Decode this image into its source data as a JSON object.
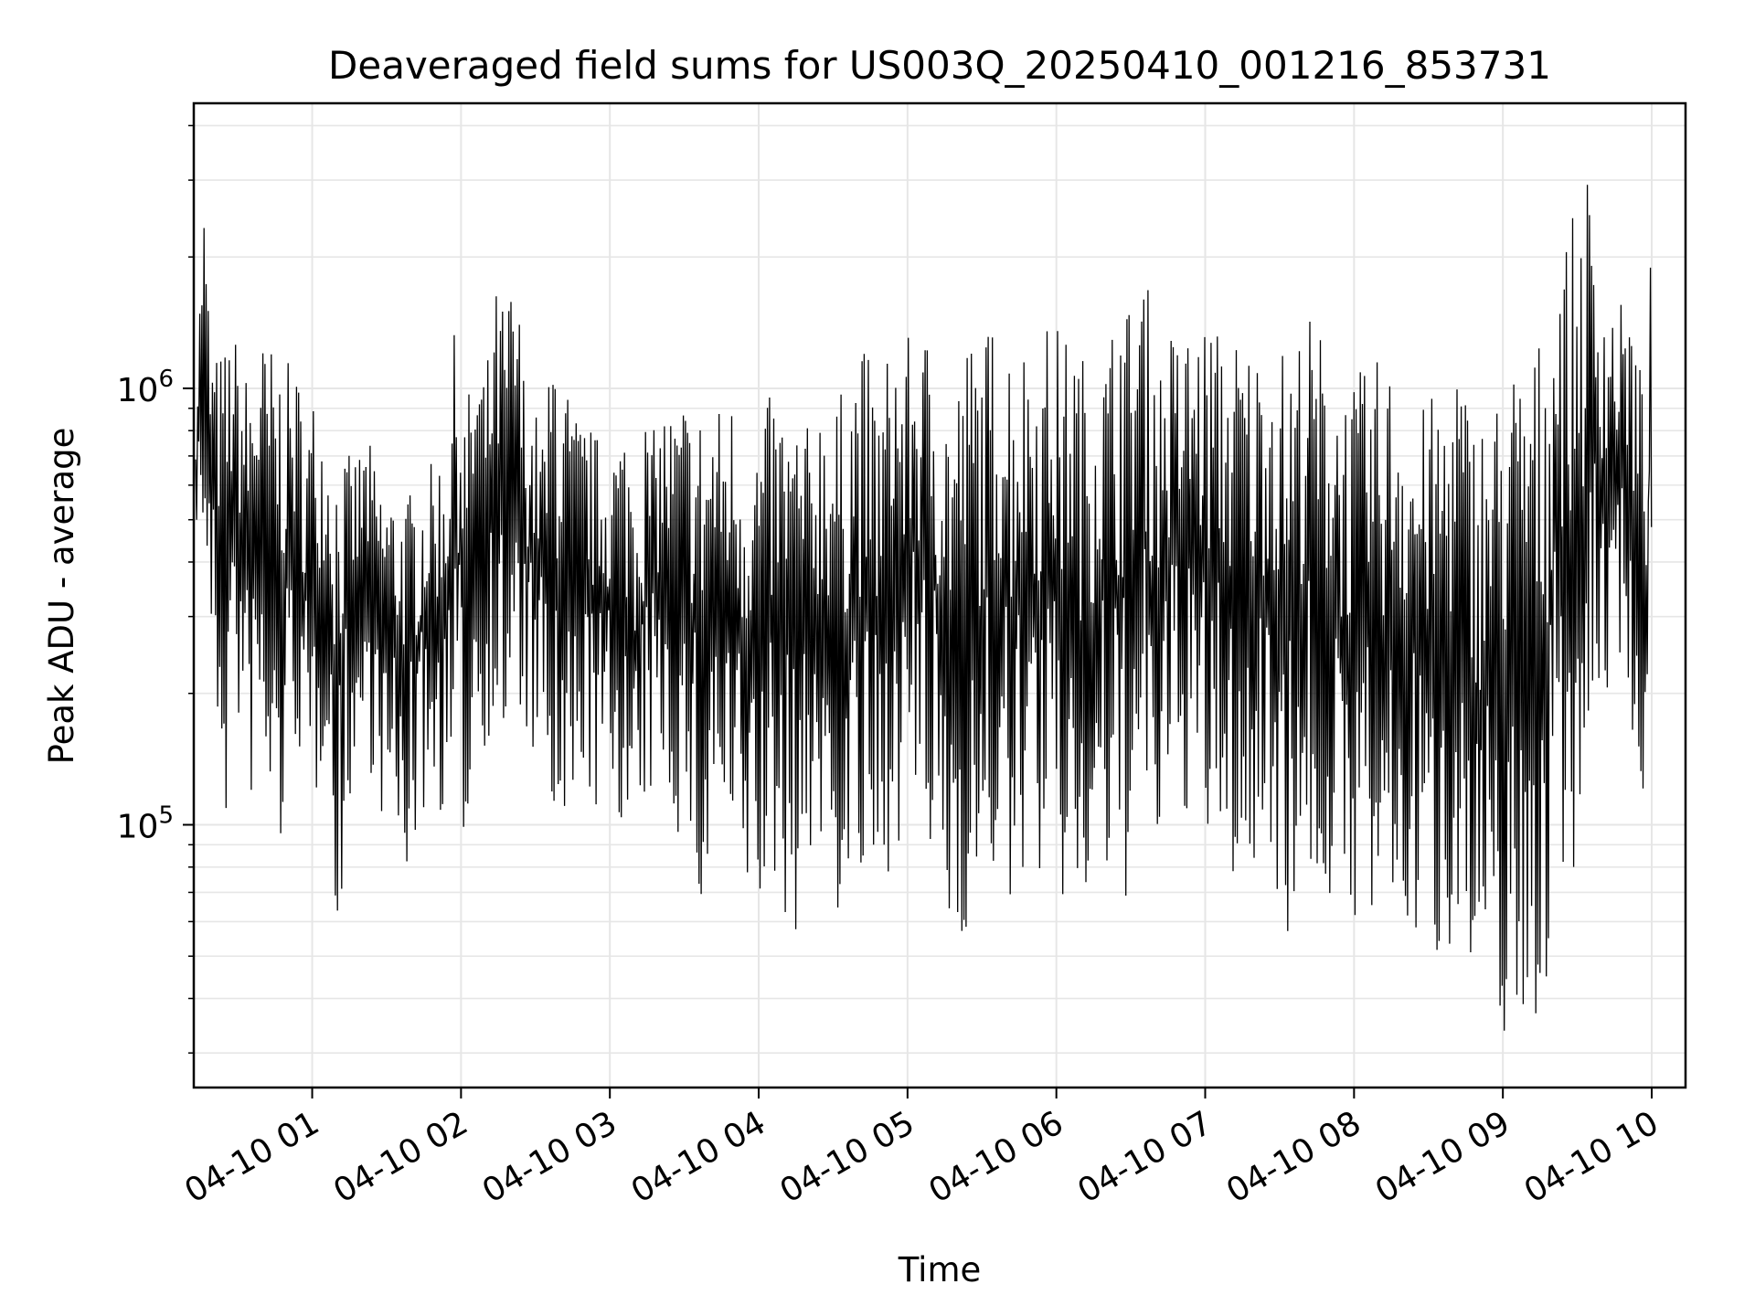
{
  "chart_data": {
    "type": "line",
    "title": "Deaveraged field sums for US003Q_20250410_001216_853731",
    "xlabel": "Time",
    "ylabel": "Peak ADU - average",
    "y_scale": "log",
    "ylim": [
      25000,
      4500000
    ],
    "xlim": [
      "2025-04-10T00:12:16",
      "2025-04-10T10:00:00"
    ],
    "grid": true,
    "line_color": "#000000",
    "grid_color": "#e6e6e6",
    "x_ticks": [
      {
        "value": "2025-04-10T01:00:00",
        "label": "04-10 01"
      },
      {
        "value": "2025-04-10T02:00:00",
        "label": "04-10 02"
      },
      {
        "value": "2025-04-10T03:00:00",
        "label": "04-10 03"
      },
      {
        "value": "2025-04-10T04:00:00",
        "label": "04-10 04"
      },
      {
        "value": "2025-04-10T05:00:00",
        "label": "04-10 05"
      },
      {
        "value": "2025-04-10T06:00:00",
        "label": "04-10 06"
      },
      {
        "value": "2025-04-10T07:00:00",
        "label": "04-10 07"
      },
      {
        "value": "2025-04-10T08:00:00",
        "label": "04-10 08"
      },
      {
        "value": "2025-04-10T09:00:00",
        "label": "04-10 09"
      },
      {
        "value": "2025-04-10T10:00:00",
        "label": "04-10 10"
      }
    ],
    "y_ticks": [
      {
        "value": 100000,
        "base": "10",
        "exp": "5"
      },
      {
        "value": 1000000,
        "base": "10",
        "exp": "6"
      }
    ],
    "series": [
      {
        "x": [
          "2025-04-10T00:13:00",
          "2025-04-10T00:16:00",
          "2025-04-10T00:19:00",
          "2025-04-10T00:22:00",
          "2025-04-10T00:25:00",
          "2025-04-10T00:28:00",
          "2025-04-10T00:31:00",
          "2025-04-10T00:34:00",
          "2025-04-10T00:38:00",
          "2025-04-10T00:42:00",
          "2025-04-10T00:46:00",
          "2025-04-10T00:50:00",
          "2025-04-10T00:54:00",
          "2025-04-10T00:58:00",
          "2025-04-10T01:02:00",
          "2025-04-10T01:06:00",
          "2025-04-10T01:10:00",
          "2025-04-10T01:14:00",
          "2025-04-10T01:18:00",
          "2025-04-10T01:22:00",
          "2025-04-10T01:26:00",
          "2025-04-10T01:30:00",
          "2025-04-10T01:34:00",
          "2025-04-10T01:38:00",
          "2025-04-10T01:42:00",
          "2025-04-10T01:46:00",
          "2025-04-10T01:50:00",
          "2025-04-10T01:54:00",
          "2025-04-10T01:58:00",
          "2025-04-10T02:02:00",
          "2025-04-10T02:06:00",
          "2025-04-10T02:10:00",
          "2025-04-10T02:14:00",
          "2025-04-10T02:18:00",
          "2025-04-10T02:22:00",
          "2025-04-10T02:26:00",
          "2025-04-10T02:30:00",
          "2025-04-10T02:34:00",
          "2025-04-10T02:38:00",
          "2025-04-10T02:42:00",
          "2025-04-10T02:46:00",
          "2025-04-10T02:50:00",
          "2025-04-10T02:54:00",
          "2025-04-10T02:58:00",
          "2025-04-10T03:02:00",
          "2025-04-10T03:06:00",
          "2025-04-10T03:10:00",
          "2025-04-10T03:14:00",
          "2025-04-10T03:18:00",
          "2025-04-10T03:22:00",
          "2025-04-10T03:26:00",
          "2025-04-10T03:30:00",
          "2025-04-10T03:34:00",
          "2025-04-10T03:38:00",
          "2025-04-10T03:42:00",
          "2025-04-10T03:46:00",
          "2025-04-10T03:50:00",
          "2025-04-10T03:54:00",
          "2025-04-10T03:58:00",
          "2025-04-10T04:02:00",
          "2025-04-10T04:06:00",
          "2025-04-10T04:10:00",
          "2025-04-10T04:14:00",
          "2025-04-10T04:18:00",
          "2025-04-10T04:22:00",
          "2025-04-10T04:26:00",
          "2025-04-10T04:30:00",
          "2025-04-10T04:34:00",
          "2025-04-10T04:38:00",
          "2025-04-10T04:42:00",
          "2025-04-10T04:46:00",
          "2025-04-10T04:50:00",
          "2025-04-10T04:54:00",
          "2025-04-10T04:58:00",
          "2025-04-10T05:02:00",
          "2025-04-10T05:06:00",
          "2025-04-10T05:10:00",
          "2025-04-10T05:14:00",
          "2025-04-10T05:18:00",
          "2025-04-10T05:22:00",
          "2025-04-10T05:26:00",
          "2025-04-10T05:30:00",
          "2025-04-10T05:34:00",
          "2025-04-10T05:38:00",
          "2025-04-10T05:42:00",
          "2025-04-10T05:46:00",
          "2025-04-10T05:50:00",
          "2025-04-10T05:54:00",
          "2025-04-10T05:58:00",
          "2025-04-10T06:02:00",
          "2025-04-10T06:06:00",
          "2025-04-10T06:10:00",
          "2025-04-10T06:14:00",
          "2025-04-10T06:18:00",
          "2025-04-10T06:22:00",
          "2025-04-10T06:26:00",
          "2025-04-10T06:30:00",
          "2025-04-10T06:34:00",
          "2025-04-10T06:38:00",
          "2025-04-10T06:42:00",
          "2025-04-10T06:46:00",
          "2025-04-10T06:50:00",
          "2025-04-10T06:54:00",
          "2025-04-10T06:58:00",
          "2025-04-10T07:02:00",
          "2025-04-10T07:06:00",
          "2025-04-10T07:10:00",
          "2025-04-10T07:14:00",
          "2025-04-10T07:18:00",
          "2025-04-10T07:22:00",
          "2025-04-10T07:26:00",
          "2025-04-10T07:30:00",
          "2025-04-10T07:34:00",
          "2025-04-10T07:38:00",
          "2025-04-10T07:42:00",
          "2025-04-10T07:46:00",
          "2025-04-10T07:50:00",
          "2025-04-10T07:54:00",
          "2025-04-10T07:58:00",
          "2025-04-10T08:02:00",
          "2025-04-10T08:06:00",
          "2025-04-10T08:10:00",
          "2025-04-10T08:14:00",
          "2025-04-10T08:18:00",
          "2025-04-10T08:22:00",
          "2025-04-10T08:26:00",
          "2025-04-10T08:30:00",
          "2025-04-10T08:34:00",
          "2025-04-10T08:38:00",
          "2025-04-10T08:42:00",
          "2025-04-10T08:46:00",
          "2025-04-10T08:50:00",
          "2025-04-10T08:54:00",
          "2025-04-10T08:58:00",
          "2025-04-10T09:02:00",
          "2025-04-10T09:06:00",
          "2025-04-10T09:10:00",
          "2025-04-10T09:14:00",
          "2025-04-10T09:18:00",
          "2025-04-10T09:22:00",
          "2025-04-10T09:26:00",
          "2025-04-10T09:30:00",
          "2025-04-10T09:34:00",
          "2025-04-10T09:38:00",
          "2025-04-10T09:42:00",
          "2025-04-10T09:46:00",
          "2025-04-10T09:50:00",
          "2025-04-10T09:54:00",
          "2025-04-10T09:58:00",
          "2025-04-10T10:00:00"
        ],
        "high": [
          750000,
          3200000,
          1300000,
          1200000,
          1300000,
          1400000,
          1200000,
          1100000,
          1350000,
          1300000,
          1250000,
          1150000,
          1100000,
          900000,
          1050000,
          750000,
          780000,
          700000,
          720000,
          800000,
          650000,
          620000,
          600000,
          580000,
          600000,
          650000,
          700000,
          800000,
          1500000,
          900000,
          1300000,
          1100000,
          1700000,
          1600000,
          2000000,
          1000000,
          900000,
          800000,
          1750000,
          1100000,
          900000,
          850000,
          800000,
          750000,
          800000,
          850000,
          820000,
          900000,
          800000,
          950000,
          900000,
          1000000,
          850000,
          1000000,
          900000,
          950000,
          1000000,
          850000,
          800000,
          900000,
          1000000,
          950000,
          900000,
          850000,
          800000,
          1100000,
          950000,
          1000000,
          1200000,
          1300000,
          1100000,
          1050000,
          1500000,
          1200000,
          1400000,
          1300000,
          1500000,
          1100000,
          1000000,
          1200000,
          1400000,
          1300000,
          1450000,
          1500000,
          1400000,
          1300000,
          1350000,
          1200000,
          1700000,
          1250000,
          1500000,
          1200000,
          1300000,
          1200000,
          1400000,
          2000000,
          1500000,
          2100000,
          1600000,
          1200000,
          1400000,
          1300000,
          1450000,
          1400000,
          1500000,
          1350000,
          1300000,
          1400000,
          1300000,
          1250000,
          1350000,
          1300000,
          1200000,
          1400000,
          1500000,
          1400000,
          1300000,
          1200000,
          1000000,
          1100000,
          1100000,
          1200000,
          1150000,
          1300000,
          1000000,
          900000,
          950000,
          1000000,
          1050000,
          1300000,
          950000,
          900000,
          950000,
          1000000,
          1400000,
          1100000,
          1300000,
          1300000,
          1500000,
          2200000,
          2300000,
          2600000,
          3300000,
          2000000,
          1800000,
          1500000,
          1700000,
          1300000,
          900000,
          2500000
        ],
        "low": [
          500000,
          400000,
          250000,
          150000,
          90000,
          200000,
          150000,
          100000,
          130000,
          95000,
          70000,
          110000,
          160000,
          85000,
          110000,
          170000,
          40000,
          110000,
          120000,
          150000,
          110000,
          95000,
          80000,
          75000,
          90000,
          110000,
          110000,
          100000,
          110000,
          85000,
          150000,
          150000,
          170000,
          130000,
          150000,
          160000,
          130000,
          140000,
          70000,
          65000,
          90000,
          140000,
          95000,
          115000,
          110000,
          95000,
          60000,
          100000,
          120000,
          130000,
          95000,
          90000,
          80000,
          45000,
          110000,
          80000,
          70000,
          60000,
          70000,
          55000,
          70000,
          60000,
          55000,
          60000,
          95000,
          75000,
          65000,
          55000,
          80000,
          60000,
          60000,
          50000,
          110000,
          80000,
          110000,
          90000,
          70000,
          60000,
          50000,
          55000,
          55000,
          60000,
          75000,
          65000,
          50000,
          75000,
          90000,
          70000,
          65000,
          60000,
          70000,
          55000,
          60000,
          80000,
          60000,
          50000,
          85000,
          90000,
          75000,
          85000,
          95000,
          110000,
          100000,
          95000,
          75000,
          90000,
          70000,
          75000,
          60000,
          80000,
          95000,
          60000,
          55000,
          70000,
          75000,
          60000,
          65000,
          50000,
          60000,
          60000,
          55000,
          50000,
          60000,
          48000,
          55000,
          50000,
          60000,
          45000,
          50000,
          65000,
          40000,
          35000,
          32000,
          35000,
          30000,
          28000,
          32000,
          35000,
          40000,
          90000,
          70000,
          85000,
          80000,
          200000,
          180000,
          250000,
          220000,
          120000,
          100000,
          450000
        ]
      }
    ]
  }
}
